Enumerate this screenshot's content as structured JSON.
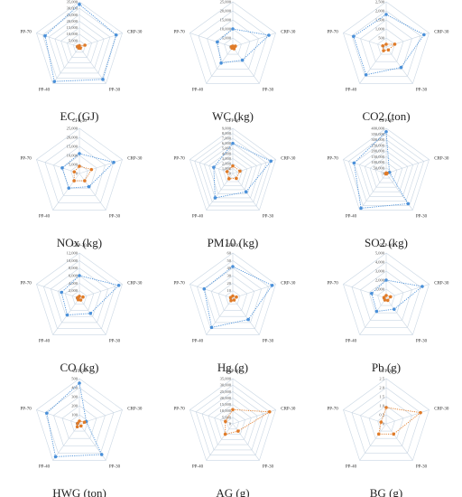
{
  "figure": {
    "axes": [
      "CFP-30",
      "CRP-30",
      "PP-30",
      "PP-40",
      "PP-70"
    ]
  },
  "colors": {
    "blue": "#4a90d9",
    "orange": "#e07b28",
    "grid": "#c9d6e3"
  },
  "chart_data": [
    {
      "type": "radar",
      "title": "EC (GJ)",
      "ticks": [
        "0",
        "5,000",
        "10,000",
        "15,000",
        "20,000",
        "25,000",
        "30,000",
        "35,000"
      ],
      "rmax": 35000,
      "series": [
        {
          "color": "blue",
          "values": [
            33000,
            30000,
            31000,
            33000,
            28000
          ]
        },
        {
          "color": "orange",
          "values": [
            1000,
            4500,
            1200,
            1000,
            1500
          ]
        }
      ]
    },
    {
      "type": "radar",
      "title": "WC (kg)",
      "ticks": [
        "0",
        "5,000",
        "10,000",
        "15,000",
        "20,000",
        "25,000"
      ],
      "rmax": 25000,
      "series": [
        {
          "color": "blue",
          "values": [
            10000,
            21000,
            9000,
            11000,
            9000
          ]
        },
        {
          "color": "orange",
          "values": [
            500,
            1500,
            1200,
            800,
            700
          ]
        }
      ]
    },
    {
      "type": "radar",
      "title": "CO2 (ton)",
      "ticks": [
        "0",
        "500",
        "1,000",
        "1,500",
        "2,000",
        "2,500"
      ],
      "rmax": 2500,
      "series": [
        {
          "color": "blue",
          "values": [
            1800,
            2200,
            1400,
            1900,
            1900
          ]
        },
        {
          "color": "orange",
          "values": [
            150,
            500,
            200,
            250,
            200
          ]
        }
      ]
    },
    {
      "type": "radar",
      "title": "NOx (kg)",
      "ticks": [
        "0",
        "5,000",
        "10,000",
        "15,000",
        "20,000",
        "25,000"
      ],
      "rmax": 25000,
      "series": [
        {
          "color": "blue",
          "values": [
            11000,
            20000,
            9000,
            10000,
            10000
          ]
        },
        {
          "color": "orange",
          "values": [
            4000,
            7000,
            5000,
            5000,
            3000
          ]
        }
      ]
    },
    {
      "type": "radar",
      "title": "PM10 (kg)",
      "ticks": [
        "0",
        "1,000",
        "2,000",
        "3,000",
        "4,000",
        "5,000",
        "6,000",
        "7,000",
        "8,000",
        "9,000"
      ],
      "rmax": 9000,
      "series": [
        {
          "color": "blue",
          "values": [
            6000,
            8000,
            4500,
            6000,
            4000
          ]
        },
        {
          "color": "orange",
          "values": [
            1500,
            1500,
            1200,
            1300,
            1200
          ]
        }
      ]
    },
    {
      "type": "radar",
      "title": "SO2 (kg)",
      "ticks": [
        "0",
        "50,000",
        "100,000",
        "150,000",
        "200,000",
        "250,000",
        "300,000",
        "350,000",
        "400,000"
      ],
      "rmax": 400000,
      "series": [
        {
          "color": "blue",
          "values": [
            370000,
            30000,
            330000,
            380000,
            300000
          ]
        },
        {
          "color": "orange",
          "values": [
            5000,
            8000,
            4000,
            5000,
            3000
          ]
        }
      ]
    },
    {
      "type": "radar",
      "title": "CO (kg)",
      "ticks": [
        "0",
        "2,000",
        "4,000",
        "6,000",
        "8,000",
        "10,000",
        "12,000"
      ],
      "rmax": 12000,
      "series": [
        {
          "color": "blue",
          "values": [
            6000,
            11000,
            5000,
            5500,
            5000
          ]
        },
        {
          "color": "orange",
          "values": [
            500,
            1000,
            600,
            500,
            500
          ]
        }
      ]
    },
    {
      "type": "radar",
      "title": "Hg (g)",
      "ticks": [
        "0",
        "10",
        "20",
        "30",
        "40",
        "50",
        "60"
      ],
      "rmax": 60,
      "series": [
        {
          "color": "blue",
          "values": [
            42,
            55,
            35,
            48,
            40
          ]
        },
        {
          "color": "orange",
          "values": [
            3,
            5,
            3,
            4,
            3
          ]
        }
      ]
    },
    {
      "type": "radar",
      "title": "Pb (g)",
      "ticks": [
        "0",
        "1,000",
        "2,000",
        "3,000",
        "4,000",
        "5,000"
      ],
      "rmax": 5000,
      "series": [
        {
          "color": "blue",
          "values": [
            2000,
            4200,
            1500,
            1800,
            1700
          ]
        },
        {
          "color": "orange",
          "values": [
            300,
            500,
            300,
            250,
            250
          ]
        }
      ]
    },
    {
      "type": "radar",
      "title": "HWG (ton)",
      "ticks": [
        "0",
        "100",
        "200",
        "300",
        "400",
        "500"
      ],
      "rmax": 500,
      "series": [
        {
          "color": "blue",
          "values": [
            450,
            80,
            420,
            450,
            380
          ]
        },
        {
          "color": "orange",
          "values": [
            30,
            60,
            30,
            40,
            20
          ]
        }
      ]
    },
    {
      "type": "radar",
      "title": "AG (g)",
      "ticks": [
        "0",
        "5,000",
        "10,000",
        "15,000",
        "20,000",
        "25,000",
        "30,000",
        "35,000"
      ],
      "rmax": 35000,
      "series": [
        {
          "color": "orange",
          "values": [
            11000,
            30000,
            7000,
            10000,
            6000
          ]
        }
      ]
    },
    {
      "type": "radar",
      "title": "BG (g)",
      "ticks": [
        "0",
        "0.5",
        "1.0",
        "1.5",
        "2.0",
        "2.5"
      ],
      "rmax": 2.5,
      "series": [
        {
          "color": "orange",
          "values": [
            0.9,
            2.0,
            0.7,
            0.7,
            0.3
          ]
        }
      ]
    }
  ]
}
